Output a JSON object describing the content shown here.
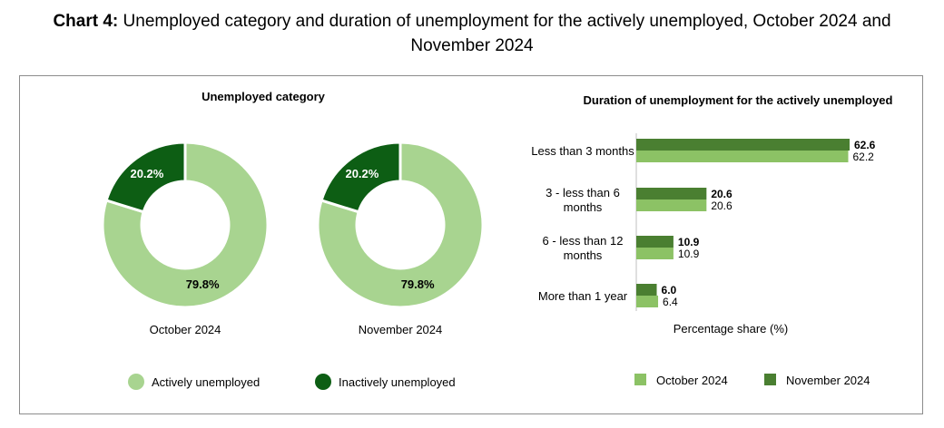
{
  "title": {
    "prefix": "Chart 4:",
    "line1": "Unemployed category and duration of unemployment for the actively unemployed, October 2024 and",
    "line2": "November 2024"
  },
  "colors": {
    "actively": "#a8d490",
    "inactively": "#0d5e14",
    "october": "#8cc265",
    "november": "#4a7f31",
    "frame": "#8c8c8c"
  },
  "chart_data": [
    {
      "type": "pie",
      "variant": "donut",
      "title": "Unemployed category",
      "pies": [
        {
          "label": "October 2024",
          "slices": [
            {
              "name": "Actively unemployed",
              "value": 79.8,
              "label": "79.8%"
            },
            {
              "name": "Inactively unemployed",
              "value": 20.2,
              "label": "20.2%"
            }
          ]
        },
        {
          "label": "November 2024",
          "slices": [
            {
              "name": "Actively unemployed",
              "value": 79.8,
              "label": "79.8%"
            },
            {
              "name": "Inactively unemployed",
              "value": 20.2,
              "label": "20.2%"
            }
          ]
        }
      ],
      "legend": [
        "Actively unemployed",
        "Inactively unemployed"
      ],
      "legend_position": "bottom"
    },
    {
      "type": "bar",
      "orientation": "horizontal",
      "title": "Duration of unemployment for the actively unemployed",
      "categories": [
        [
          "Less than 3 months"
        ],
        [
          "3 - less than 6",
          "months"
        ],
        [
          "6 - less than 12",
          "months"
        ],
        [
          "More than 1 year"
        ]
      ],
      "series": [
        {
          "name": "November 2024",
          "values": [
            62.6,
            20.6,
            10.9,
            6.0
          ],
          "labels": [
            "62.6",
            "20.6",
            "10.9",
            "6.0"
          ]
        },
        {
          "name": "October 2024",
          "values": [
            62.2,
            20.6,
            10.9,
            6.4
          ],
          "labels": [
            "62.2",
            "20.6",
            "10.9",
            "6.4"
          ]
        }
      ],
      "xlabel": "Percentage share (%)",
      "legend": [
        "October 2024",
        "November 2024"
      ],
      "legend_position": "bottom",
      "grid": false
    }
  ]
}
